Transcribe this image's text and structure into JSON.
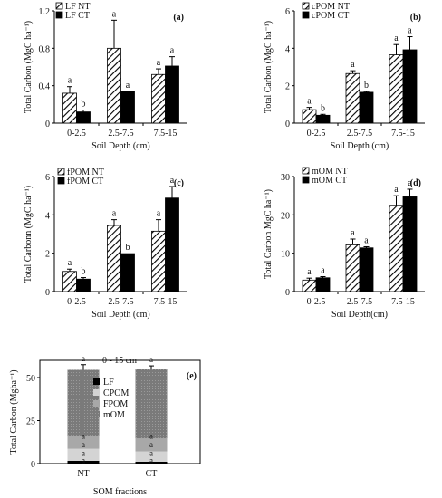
{
  "chart_data": [
    {
      "type": "bar",
      "panel": "(a)",
      "categories": [
        "0-2.5",
        "2.5-7.5",
        "7.5-15"
      ],
      "series": [
        {
          "name": "LF NT",
          "values": [
            0.32,
            0.8,
            0.52
          ],
          "errors": [
            0.07,
            0.3,
            0.06
          ],
          "letters": [
            "a",
            "a",
            "a"
          ]
        },
        {
          "name": "LF CT",
          "values": [
            0.12,
            0.34,
            0.61
          ],
          "errors": [
            0.02,
            0.0,
            0.1
          ],
          "letters": [
            "b",
            "a",
            "a"
          ]
        }
      ],
      "xlabel": "Soil Depth (cm)",
      "ylabel": "Total Carbon (MgC ha⁻¹)",
      "ylim": [
        0,
        1.2
      ],
      "yticks": [
        "0",
        "0.4",
        "0.8",
        "1.2"
      ],
      "legend": "top-left"
    },
    {
      "type": "bar",
      "panel": "(b)",
      "categories": [
        "0-2.5",
        "2.5-7.5",
        "7.5-15"
      ],
      "series": [
        {
          "name": "cPOM NT",
          "values": [
            0.72,
            2.65,
            3.65
          ],
          "errors": [
            0.12,
            0.15,
            0.55
          ],
          "letters": [
            "a",
            "a",
            "a"
          ]
        },
        {
          "name": "cPOM CT",
          "values": [
            0.42,
            1.65,
            3.92
          ],
          "errors": [
            0.05,
            0.05,
            0.7
          ],
          "letters": [
            "b",
            "b",
            "a"
          ]
        }
      ],
      "xlabel": "Soil Depth (cm)",
      "ylabel": "Total Carbon (MgC ha⁻¹)",
      "ylim": [
        0,
        6
      ],
      "yticks": [
        "0",
        "2",
        "4",
        "6"
      ],
      "legend": "top-left"
    },
    {
      "type": "bar",
      "panel": "(c)",
      "categories": [
        "0-2.5",
        "2.5-7.5",
        "7.5-15"
      ],
      "series": [
        {
          "name": "fPOM NT",
          "values": [
            1.05,
            3.45,
            3.15
          ],
          "errors": [
            0.12,
            0.3,
            0.6
          ],
          "letters": [
            "a",
            "a",
            "a"
          ]
        },
        {
          "name": "fPOM CT",
          "values": [
            0.65,
            1.98,
            4.88
          ],
          "errors": [
            0.08,
            0.0,
            0.6
          ],
          "letters": [
            "b",
            "b",
            "a"
          ]
        }
      ],
      "xlabel": "Soil Depth (cm)",
      "ylabel": "Total Carbonn (MgC ha⁻¹)",
      "ylim": [
        0,
        6
      ],
      "yticks": [
        "0",
        "2",
        "4",
        "6"
      ],
      "legend": "top-left"
    },
    {
      "type": "bar",
      "panel": "(d)",
      "categories": [
        "0-2.5",
        "2.5-7.5",
        "7.5-15"
      ],
      "series": [
        {
          "name": "mOM NT",
          "values": [
            3.0,
            12.2,
            22.5
          ],
          "errors": [
            0.5,
            1.5,
            2.5
          ],
          "letters": [
            "a",
            "a",
            "a"
          ]
        },
        {
          "name": "mOM CT",
          "values": [
            3.6,
            11.4,
            24.7
          ],
          "errors": [
            0.3,
            0.3,
            2.0
          ],
          "letters": [
            "a",
            "a",
            "a"
          ]
        }
      ],
      "xlabel": "Soil Depth(cm)",
      "ylabel": "Total Carbon MgC ha⁻¹)",
      "ylim": [
        0,
        30
      ],
      "yticks": [
        "0",
        "10",
        "20",
        "30"
      ],
      "legend": "top-left"
    },
    {
      "type": "stacked-bar",
      "panel": "(e)",
      "title": "0 - 15 cm",
      "categories": [
        "NT",
        "CT"
      ],
      "series": [
        {
          "name": "LF",
          "values": [
            1.6,
            1.1
          ],
          "color": "#000000"
        },
        {
          "name": "CPOM",
          "values": [
            7.0,
            6.0
          ],
          "color": "#d4d4d4"
        },
        {
          "name": "FPOM",
          "values": [
            7.7,
            7.5
          ],
          "color": "#a8a8a8"
        },
        {
          "name": "mOM",
          "values": [
            38.2,
            40.2
          ],
          "color": "#7f7f7f"
        }
      ],
      "totals": [
        54.5,
        54.8
      ],
      "total_errors": [
        3.0,
        2.0
      ],
      "letters": [
        [
          "a",
          "a",
          "a",
          "a",
          "a"
        ],
        [
          "a",
          "a",
          "a",
          "a",
          "a"
        ]
      ],
      "xlabel": "SOM fractions",
      "ylabel": "Total Carbon (Mgha⁻¹)",
      "ylim": [
        0,
        60
      ],
      "yticks": [
        "0",
        "25",
        "50"
      ],
      "legend": "top-center"
    }
  ]
}
